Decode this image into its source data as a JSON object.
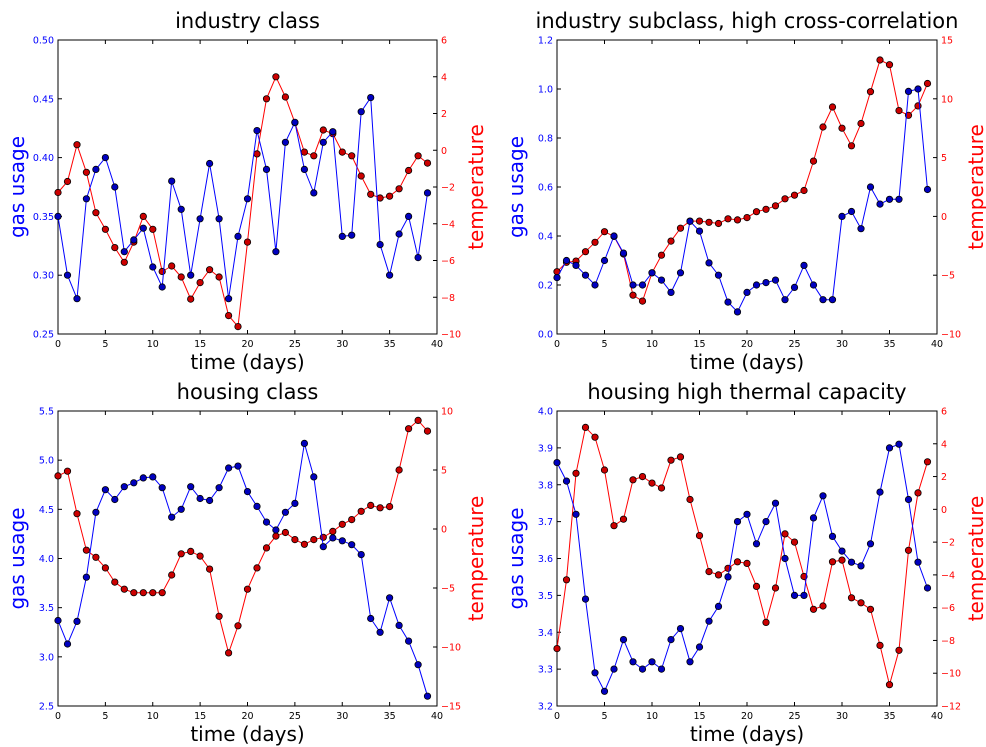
{
  "chart_data": [
    {
      "type": "line",
      "title": "industry class",
      "xlabel": "time (days)",
      "x": [
        0,
        1,
        2,
        3,
        4,
        5,
        6,
        7,
        8,
        9,
        10,
        11,
        12,
        13,
        14,
        15,
        16,
        17,
        18,
        19,
        20,
        21,
        22,
        23,
        24,
        25,
        26,
        27,
        28,
        29,
        30,
        31,
        32,
        33,
        34,
        35,
        36,
        37,
        38,
        39
      ],
      "xlim": [
        0,
        40
      ],
      "xticks": [
        0,
        5,
        10,
        15,
        20,
        25,
        30,
        35,
        40
      ],
      "left_axis": {
        "label": "gas usage",
        "color": "#0000ff",
        "lim": [
          0.25,
          0.5
        ],
        "ticks": [
          0.25,
          0.3,
          0.35,
          0.4,
          0.45,
          0.5
        ],
        "tick_labels": [
          "0.25",
          "0.30",
          "0.35",
          "0.40",
          "0.45",
          "0.50"
        ],
        "values": [
          0.35,
          0.3,
          0.28,
          0.365,
          0.39,
          0.4,
          0.375,
          0.32,
          0.33,
          0.34,
          0.307,
          0.29,
          0.38,
          0.356,
          0.3,
          0.348,
          0.395,
          0.348,
          0.28,
          0.333,
          0.365,
          0.423,
          0.39,
          0.32,
          0.413,
          0.43,
          0.39,
          0.37,
          0.413,
          0.422,
          0.333,
          0.334,
          0.439,
          0.451,
          0.326,
          0.3,
          0.335,
          0.35,
          0.315,
          0.37
        ]
      },
      "right_axis": {
        "label": "temperature",
        "color": "#ff0000",
        "lim": [
          -10,
          6
        ],
        "ticks": [
          -10,
          -8,
          -6,
          -4,
          -2,
          0,
          2,
          4,
          6
        ],
        "tick_labels": [
          "−10",
          "−8",
          "−6",
          "−4",
          "−2",
          "0",
          "2",
          "4",
          "6"
        ],
        "values": [
          -2.3,
          -1.7,
          0.3,
          -1.2,
          -3.4,
          -4.3,
          -5.3,
          -6.1,
          -5.0,
          -3.6,
          -4.3,
          -6.6,
          -6.3,
          -6.9,
          -8.1,
          -7.2,
          -6.5,
          -6.9,
          -9.0,
          -9.6,
          -5.0,
          -0.2,
          2.8,
          4.0,
          2.9,
          1.5,
          -0.1,
          -0.3,
          1.1,
          0.9,
          -0.1,
          -0.3,
          -1.4,
          -2.4,
          -2.6,
          -2.5,
          -2.1,
          -1.1,
          -0.3,
          -0.7
        ]
      }
    },
    {
      "type": "line",
      "title": "industry subclass, high cross-correlation",
      "xlabel": "time (days)",
      "x": [
        0,
        1,
        2,
        3,
        4,
        5,
        6,
        7,
        8,
        9,
        10,
        11,
        12,
        13,
        14,
        15,
        16,
        17,
        18,
        19,
        20,
        21,
        22,
        23,
        24,
        25,
        26,
        27,
        28,
        29,
        30,
        31,
        32,
        33,
        34,
        35,
        36,
        37,
        38,
        39
      ],
      "xlim": [
        0,
        40
      ],
      "xticks": [
        0,
        5,
        10,
        15,
        20,
        25,
        30,
        35,
        40
      ],
      "left_axis": {
        "label": "gas usage",
        "color": "#0000ff",
        "lim": [
          0.0,
          1.2
        ],
        "ticks": [
          0.0,
          0.2,
          0.4,
          0.6,
          0.8,
          1.0,
          1.2
        ],
        "tick_labels": [
          "0.0",
          "0.2",
          "0.4",
          "0.6",
          "0.8",
          "1.0",
          "1.2"
        ],
        "values": [
          0.23,
          0.3,
          0.28,
          0.24,
          0.2,
          0.3,
          0.4,
          0.33,
          0.2,
          0.2,
          0.25,
          0.22,
          0.17,
          0.25,
          0.46,
          0.42,
          0.29,
          0.24,
          0.13,
          0.09,
          0.17,
          0.2,
          0.21,
          0.22,
          0.14,
          0.19,
          0.28,
          0.2,
          0.14,
          0.14,
          0.48,
          0.5,
          0.43,
          0.6,
          0.53,
          0.55,
          0.55,
          0.99,
          1.0,
          0.59
        ]
      },
      "right_axis": {
        "label": "temperature",
        "color": "#ff0000",
        "lim": [
          -10,
          15
        ],
        "ticks": [
          -10,
          -5,
          0,
          5,
          10,
          15
        ],
        "tick_labels": [
          "−10",
          "−5",
          "0",
          "5",
          "10",
          "15"
        ],
        "values": [
          -4.7,
          -3.9,
          -3.8,
          -3.0,
          -2.2,
          -1.3,
          -1.7,
          -3.2,
          -6.7,
          -7.2,
          -4.8,
          -3.3,
          -2.1,
          -1.0,
          -0.4,
          -0.4,
          -0.5,
          -0.6,
          -0.2,
          -0.3,
          -0.1,
          0.4,
          0.6,
          0.9,
          1.5,
          1.8,
          2.2,
          4.7,
          7.6,
          9.3,
          7.5,
          6.0,
          7.9,
          10.6,
          13.3,
          12.9,
          9.0,
          8.6,
          9.4,
          11.3
        ]
      }
    },
    {
      "type": "line",
      "title": "housing class",
      "xlabel": "time (days)",
      "x": [
        0,
        1,
        2,
        3,
        4,
        5,
        6,
        7,
        8,
        9,
        10,
        11,
        12,
        13,
        14,
        15,
        16,
        17,
        18,
        19,
        20,
        21,
        22,
        23,
        24,
        25,
        26,
        27,
        28,
        29,
        30,
        31,
        32,
        33,
        34,
        35,
        36,
        37,
        38,
        39
      ],
      "xlim": [
        0,
        40
      ],
      "xticks": [
        0,
        5,
        10,
        15,
        20,
        25,
        30,
        35,
        40
      ],
      "left_axis": {
        "label": "gas usage",
        "color": "#0000ff",
        "lim": [
          2.5,
          5.5
        ],
        "ticks": [
          2.5,
          3.0,
          3.5,
          4.0,
          4.5,
          5.0,
          5.5
        ],
        "tick_labels": [
          "2.5",
          "3.0",
          "3.5",
          "4.0",
          "4.5",
          "5.0",
          "5.5"
        ],
        "values": [
          3.37,
          3.13,
          3.36,
          3.81,
          4.47,
          4.7,
          4.6,
          4.73,
          4.77,
          4.82,
          4.83,
          4.72,
          4.42,
          4.5,
          4.73,
          4.61,
          4.59,
          4.72,
          4.92,
          4.94,
          4.68,
          4.53,
          4.37,
          4.29,
          4.47,
          4.56,
          5.17,
          4.83,
          4.12,
          4.21,
          4.18,
          4.14,
          4.04,
          3.39,
          3.25,
          3.6,
          3.32,
          3.16,
          2.92,
          2.6
        ]
      },
      "right_axis": {
        "label": "temperature",
        "color": "#ff0000",
        "lim": [
          -15,
          10
        ],
        "ticks": [
          -15,
          -10,
          -5,
          0,
          5,
          10
        ],
        "tick_labels": [
          "−15",
          "−10",
          "−5",
          "0",
          "5",
          "10"
        ],
        "values": [
          4.5,
          4.9,
          1.3,
          -1.8,
          -2.4,
          -3.3,
          -4.5,
          -5.1,
          -5.4,
          -5.4,
          -5.4,
          -5.4,
          -3.9,
          -2.1,
          -1.9,
          -2.3,
          -3.4,
          -7.4,
          -10.5,
          -8.2,
          -5.1,
          -3.3,
          -1.6,
          -0.6,
          -0.3,
          -0.9,
          -1.3,
          -0.9,
          -0.7,
          -0.2,
          0.4,
          0.8,
          1.5,
          2.0,
          1.8,
          1.9,
          5.0,
          8.5,
          9.2,
          8.3
        ]
      }
    },
    {
      "type": "line",
      "title": "housing high thermal capacity",
      "xlabel": "time (days)",
      "x": [
        0,
        1,
        2,
        3,
        4,
        5,
        6,
        7,
        8,
        9,
        10,
        11,
        12,
        13,
        14,
        15,
        16,
        17,
        18,
        19,
        20,
        21,
        22,
        23,
        24,
        25,
        26,
        27,
        28,
        29,
        30,
        31,
        32,
        33,
        34,
        35,
        36,
        37,
        38,
        39
      ],
      "xlim": [
        0,
        40
      ],
      "xticks": [
        0,
        5,
        10,
        15,
        20,
        25,
        30,
        35,
        40
      ],
      "left_axis": {
        "label": "gas usage",
        "color": "#0000ff",
        "lim": [
          3.2,
          4.0
        ],
        "ticks": [
          3.2,
          3.3,
          3.4,
          3.5,
          3.6,
          3.7,
          3.8,
          3.9,
          4.0
        ],
        "tick_labels": [
          "3.2",
          "3.3",
          "3.4",
          "3.5",
          "3.6",
          "3.7",
          "3.8",
          "3.9",
          "4.0"
        ],
        "values": [
          3.86,
          3.81,
          3.72,
          3.49,
          3.29,
          3.24,
          3.3,
          3.38,
          3.32,
          3.3,
          3.32,
          3.3,
          3.38,
          3.41,
          3.32,
          3.36,
          3.43,
          3.47,
          3.55,
          3.7,
          3.72,
          3.64,
          3.7,
          3.75,
          3.6,
          3.5,
          3.5,
          3.71,
          3.77,
          3.66,
          3.62,
          3.59,
          3.58,
          3.64,
          3.78,
          3.9,
          3.91,
          3.76,
          3.59,
          3.52
        ]
      },
      "right_axis": {
        "label": "temperature",
        "color": "#ff0000",
        "lim": [
          -12,
          6
        ],
        "ticks": [
          -12,
          -10,
          -8,
          -6,
          -4,
          -2,
          0,
          2,
          4,
          6
        ],
        "tick_labels": [
          "−12",
          "−10",
          "−8",
          "−6",
          "−4",
          "−2",
          "0",
          "2",
          "4",
          "6"
        ],
        "values": [
          -8.5,
          -4.3,
          2.2,
          5.0,
          4.4,
          2.4,
          -1.0,
          -0.6,
          1.8,
          2.0,
          1.6,
          1.3,
          3.0,
          3.2,
          0.6,
          -1.6,
          -3.8,
          -4.0,
          -3.6,
          -3.2,
          -3.3,
          -4.7,
          -6.9,
          -4.8,
          -1.5,
          -2.0,
          -4.1,
          -6.1,
          -5.9,
          -3.2,
          -3.1,
          -5.4,
          -5.7,
          -6.1,
          -8.3,
          -10.7,
          -8.6,
          -2.5,
          1.0,
          2.9
        ]
      }
    }
  ]
}
